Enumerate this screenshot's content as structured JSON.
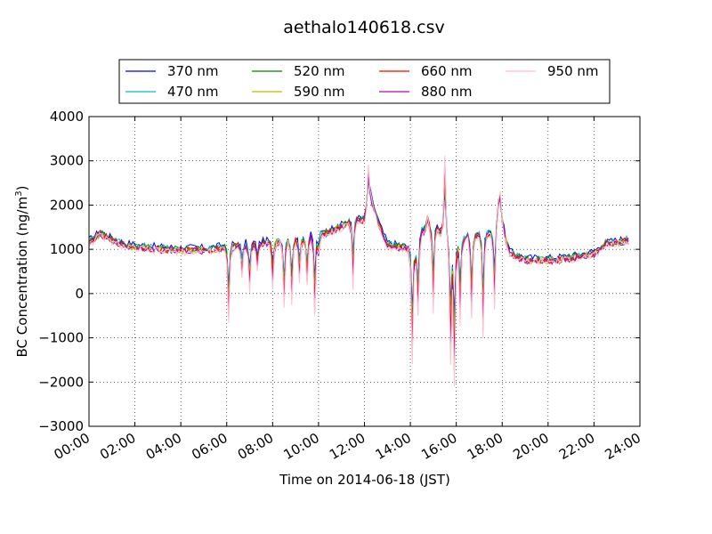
{
  "chart_data": {
    "type": "line",
    "title": "aethalo140618.csv",
    "xlabel": "Time on 2014-06-18 (JST)",
    "ylabel_main": "BC Concentration (ng/m",
    "ylabel_sup": "3",
    "ylabel_close": ")",
    "xlim": [
      "00:00",
      "24:00"
    ],
    "ylim": [
      -3000,
      4000
    ],
    "grid": true,
    "legend_position": "top",
    "x_ticks": [
      "00:00",
      "02:00",
      "04:00",
      "06:00",
      "08:00",
      "10:00",
      "12:00",
      "14:00",
      "16:00",
      "18:00",
      "20:00",
      "22:00",
      "24:00"
    ],
    "y_ticks": [
      "−3000",
      "−2000",
      "−1000",
      "0",
      "1000",
      "2000",
      "3000",
      "4000"
    ],
    "y_tick_values": [
      -3000,
      -2000,
      -1000,
      0,
      1000,
      2000,
      3000,
      4000
    ],
    "base_profile": [
      [
        "00:00",
        1150
      ],
      [
        "00:30",
        1350
      ],
      [
        "01:00",
        1200
      ],
      [
        "01:30",
        1100
      ],
      [
        "02:00",
        1050
      ],
      [
        "03:00",
        1000
      ],
      [
        "04:00",
        980
      ],
      [
        "05:00",
        980
      ],
      [
        "05:30",
        1000
      ],
      [
        "06:00",
        1050
      ],
      [
        "07:00",
        1100
      ],
      [
        "08:00",
        1150
      ],
      [
        "09:00",
        1200
      ],
      [
        "10:00",
        1300
      ],
      [
        "11:00",
        1500
      ],
      [
        "11:30",
        1650
      ],
      [
        "12:00",
        1650
      ],
      [
        "12:15",
        2200
      ],
      [
        "12:40",
        1500
      ],
      [
        "13:00",
        1100
      ],
      [
        "14:00",
        1000
      ],
      [
        "14:15",
        950
      ],
      [
        "14:30",
        1400
      ],
      [
        "15:00",
        1500
      ],
      [
        "15:40",
        1200
      ],
      [
        "16:00",
        1150
      ],
      [
        "16:30",
        1250
      ],
      [
        "17:00",
        1300
      ],
      [
        "17:40",
        1350
      ],
      [
        "17:50",
        2000
      ],
      [
        "18:10",
        1200
      ],
      [
        "18:20",
        900
      ],
      [
        "19:00",
        750
      ],
      [
        "20:00",
        750
      ],
      [
        "21:00",
        800
      ],
      [
        "22:00",
        900
      ],
      [
        "22:30",
        1100
      ],
      [
        "23:30",
        1200
      ],
      [
        "24:00",
        1200
      ]
    ],
    "peaks": [
      [
        "06:05",
        -700
      ],
      [
        "06:40",
        400
      ],
      [
        "07:00",
        100
      ],
      [
        "07:20",
        600
      ],
      [
        "08:00",
        200
      ],
      [
        "08:30",
        -300
      ],
      [
        "08:50",
        -200
      ],
      [
        "09:10",
        300
      ],
      [
        "09:30",
        200
      ],
      [
        "09:50",
        -500
      ],
      [
        "10:00",
        900
      ],
      [
        "11:30",
        200
      ],
      [
        "12:10",
        2900
      ],
      [
        "14:05",
        -1600
      ],
      [
        "14:20",
        -500
      ],
      [
        "14:45",
        1800
      ],
      [
        "15:00",
        -400
      ],
      [
        "15:30",
        3200
      ],
      [
        "15:45",
        -1500
      ],
      [
        "15:55",
        -2100
      ],
      [
        "16:10",
        -600
      ],
      [
        "16:40",
        -500
      ],
      [
        "17:10",
        -900
      ],
      [
        "17:40",
        -300
      ],
      [
        "17:55",
        2300
      ]
    ],
    "series": [
      {
        "name": "370 nm",
        "color": "#0000ff",
        "peak_scale": 0.55,
        "offset": 60
      },
      {
        "name": "470 nm",
        "color": "#00bfbf",
        "peak_scale": 0.6,
        "offset": 40
      },
      {
        "name": "520 nm",
        "color": "#008000",
        "peak_scale": 0.65,
        "offset": 20
      },
      {
        "name": "590 nm",
        "color": "#bfbf00",
        "peak_scale": 0.7,
        "offset": 0
      },
      {
        "name": "660 nm",
        "color": "#ff0000",
        "peak_scale": 0.8,
        "offset": 0
      },
      {
        "name": "880 nm",
        "color": "#bf00bf",
        "peak_scale": 0.9,
        "offset": -20
      },
      {
        "name": "950 nm",
        "color": "#ffc0cb",
        "peak_scale": 1.0,
        "offset": -40
      }
    ]
  }
}
